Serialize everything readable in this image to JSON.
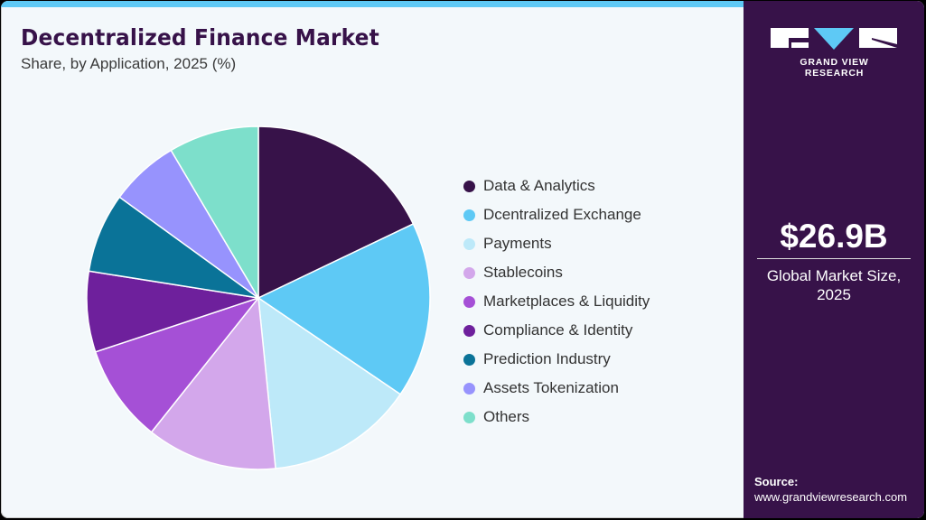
{
  "header": {
    "title": "Decentralized Finance Market",
    "subtitle": "Share, by Application, 2025 (%)"
  },
  "sidebar": {
    "brand": "GRAND VIEW RESEARCH",
    "market_size_value": "$26.9B",
    "market_size_label_line1": "Global Market Size,",
    "market_size_label_line2": "2025",
    "source_heading": "Source:",
    "source_url": "www.grandviewresearch.com"
  },
  "colors": {
    "brand_dark": "#371249",
    "accent_blue": "#5ec9f5",
    "background": "#f3f8fb"
  },
  "legend": [
    {
      "label": "Data & Analytics",
      "color": "#371249"
    },
    {
      "label": "Dcentralized Exchange",
      "color": "#5ec9f5"
    },
    {
      "label": "Payments",
      "color": "#bde9f9"
    },
    {
      "label": "Stablecoins",
      "color": "#d3a7eb"
    },
    {
      "label": "Marketplaces & Liquidity",
      "color": "#a550d6"
    },
    {
      "label": "Compliance & Identity",
      "color": "#6e209c"
    },
    {
      "label": "Prediction Industry",
      "color": "#0a7398"
    },
    {
      "label": "Assets Tokenization",
      "color": "#9793fd"
    },
    {
      "label": "Others",
      "color": "#7ddfcb"
    }
  ],
  "chart_data": {
    "type": "pie",
    "title": "Decentralized Finance Market",
    "subtitle": "Share, by Application, 2025 (%)",
    "categories": [
      "Data & Analytics",
      "Dcentralized Exchange",
      "Payments",
      "Stablecoins",
      "Marketplaces & Liquidity",
      "Compliance & Identity",
      "Prediction Industry",
      "Assets Tokenization",
      "Others"
    ],
    "values": [
      17.9,
      16.6,
      13.9,
      12.3,
      9.2,
      7.6,
      7.5,
      6.5,
      8.5
    ],
    "colors": [
      "#371249",
      "#5ec9f5",
      "#bde9f9",
      "#d3a7eb",
      "#a550d6",
      "#6e209c",
      "#0a7398",
      "#9793fd",
      "#7ddfcb"
    ],
    "start_angle_deg": 0,
    "direction": "clockwise",
    "legend_position": "right",
    "annotation": "$26.9B Global Market Size, 2025"
  }
}
